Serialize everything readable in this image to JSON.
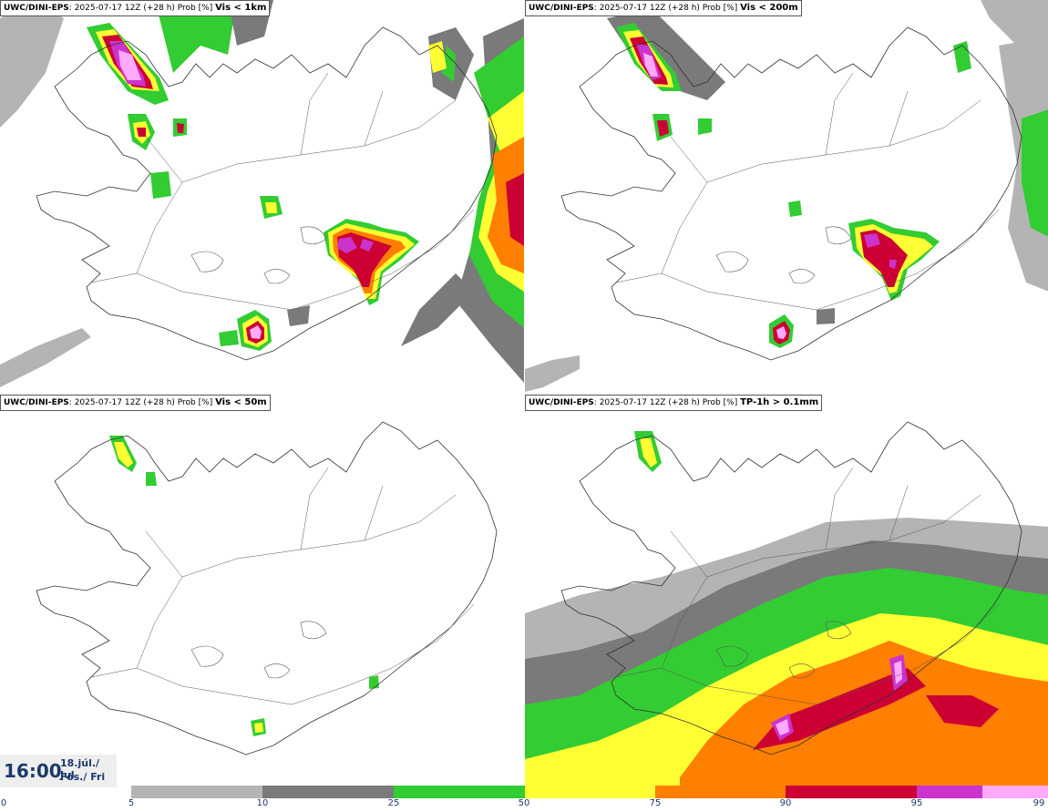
{
  "panels": [
    {
      "model": "UWC/DINI-EPS",
      "run": ": 2025-07-17 12Z (+28 h) Prob [%]",
      "variable": "Vis < 1km"
    },
    {
      "model": "UWC/DINI-EPS",
      "run": ": 2025-07-17 12Z (+28 h) Prob [%]",
      "variable": "Vis < 200m"
    },
    {
      "model": "UWC/DINI-EPS",
      "run": ": 2025-07-17 12Z (+28 h) Prob [%]",
      "variable": "Vis < 50m"
    },
    {
      "model": "UWC/DINI-EPS",
      "run": ": 2025-07-17 12Z (+28 h) Prob [%]",
      "variable": "TP-1h > 0.1mm"
    }
  ],
  "valid_time": {
    "time": "16:00",
    "date_line1": "18.júl./ Jul",
    "date_line2": "Fös./ Fri"
  },
  "legend": {
    "ticks": [
      "0",
      "5",
      "10",
      "25",
      "50",
      "75",
      "90",
      "95",
      "99"
    ],
    "colors": {
      "c5": "#b4b4b4",
      "c10": "#7a7a7a",
      "c25": "#33cc33",
      "c50": "#ffff33",
      "c75": "#ff7f00",
      "c90": "#cc0033",
      "c95": "#cc33cc",
      "c99": "#ffaaff"
    }
  }
}
